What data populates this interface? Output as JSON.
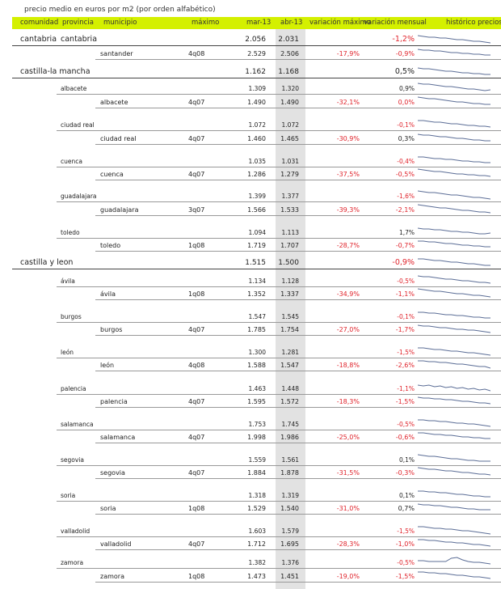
{
  "caption": "precio medio en euros por m2 (por orden alfabético)",
  "colors": {
    "header_bg": "#d4f000",
    "highlight_col": "#e2e2e2",
    "negative": "#e0232b",
    "sparkline": "#5b6d96"
  },
  "headers": {
    "comunidad": "comunidad",
    "provincia": "provincia",
    "municipio": "municipio",
    "maximo": "máximo",
    "mar13": "mar-13",
    "abr13": "abr-13",
    "var_max": "variación máximo",
    "var_mensual": "variación mensual",
    "historico": "histórico precios"
  },
  "rows": [
    {
      "level": "comunidad",
      "comunidad": "cantabria",
      "provincia": "cantabria",
      "maximo": "",
      "mar13": "2.056",
      "abr13": "2.031",
      "var_max": "",
      "var_mensual": "-1,2%",
      "neg": true,
      "trend": [
        10,
        9,
        8,
        8,
        7,
        7,
        6,
        5,
        5,
        4,
        3,
        3,
        2,
        1
      ]
    },
    {
      "level": "municipio",
      "municipio": "santander",
      "maximo": "4q08",
      "mar13": "2.529",
      "abr13": "2.506",
      "var_max": "-17,9%",
      "var_mensual": "-0,9%",
      "neg": true,
      "trend": [
        10,
        9,
        9,
        8,
        8,
        7,
        6,
        6,
        5,
        5,
        4,
        4,
        3,
        3
      ]
    },
    {
      "level": "comunidad",
      "comunidad": "castilla-la mancha",
      "provincia": "",
      "maximo": "",
      "mar13": "1.162",
      "abr13": "1.168",
      "var_max": "",
      "var_mensual": "0,5%",
      "neg": false,
      "trend": [
        10,
        9,
        9,
        8,
        7,
        6,
        6,
        5,
        4,
        4,
        3,
        3,
        2,
        2
      ]
    },
    {
      "level": "provincia",
      "provincia": "albacete",
      "maximo": "",
      "mar13": "1.309",
      "abr13": "1.320",
      "var_max": "",
      "var_mensual": "0,9%",
      "neg": false,
      "trend": [
        11,
        10,
        10,
        9,
        8,
        7,
        7,
        6,
        5,
        4,
        4,
        3,
        2,
        3
      ]
    },
    {
      "level": "municipio",
      "municipio": "albacete",
      "maximo": "4q07",
      "mar13": "1.490",
      "abr13": "1.490",
      "var_max": "-32,1%",
      "var_mensual": "0,0%",
      "neg": true,
      "trend": [
        11,
        10,
        9,
        9,
        8,
        7,
        6,
        5,
        5,
        4,
        3,
        3,
        2,
        2
      ]
    },
    {
      "level": "provincia",
      "provincia": "ciudad real",
      "maximo": "",
      "mar13": "1.072",
      "abr13": "1.072",
      "var_max": "",
      "var_mensual": "-0,1%",
      "neg": true,
      "trend": [
        10,
        10,
        9,
        8,
        8,
        7,
        6,
        6,
        5,
        4,
        4,
        3,
        3,
        2
      ]
    },
    {
      "level": "municipio",
      "municipio": "ciudad real",
      "maximo": "4q07",
      "mar13": "1.460",
      "abr13": "1.465",
      "var_max": "-30,9%",
      "var_mensual": "0,3%",
      "neg": false,
      "trend": [
        10,
        9,
        9,
        8,
        7,
        7,
        6,
        5,
        5,
        4,
        3,
        3,
        2,
        2
      ]
    },
    {
      "level": "provincia",
      "provincia": "cuenca",
      "maximo": "",
      "mar13": "1.035",
      "abr13": "1.031",
      "var_max": "",
      "var_mensual": "-0,4%",
      "neg": true,
      "trend": [
        10,
        10,
        9,
        8,
        8,
        7,
        7,
        6,
        5,
        5,
        4,
        4,
        3,
        3
      ]
    },
    {
      "level": "municipio",
      "municipio": "cuenca",
      "maximo": "4q07",
      "mar13": "1.286",
      "abr13": "1.279",
      "var_max": "-37,5%",
      "var_mensual": "-0,5%",
      "neg": true,
      "trend": [
        11,
        10,
        9,
        8,
        8,
        7,
        6,
        5,
        5,
        4,
        4,
        3,
        3,
        2
      ]
    },
    {
      "level": "provincia",
      "provincia": "guadalajara",
      "maximo": "",
      "mar13": "1.399",
      "abr13": "1.377",
      "var_max": "",
      "var_mensual": "-1,6%",
      "neg": true,
      "trend": [
        11,
        10,
        9,
        9,
        8,
        7,
        6,
        6,
        5,
        4,
        3,
        3,
        2,
        1
      ]
    },
    {
      "level": "municipio",
      "municipio": "guadalajara",
      "maximo": "3q07",
      "mar13": "1.566",
      "abr13": "1.533",
      "var_max": "-39,3%",
      "var_mensual": "-2,1%",
      "neg": true,
      "trend": [
        11,
        10,
        9,
        8,
        7,
        7,
        6,
        5,
        4,
        4,
        3,
        2,
        2,
        1
      ]
    },
    {
      "level": "provincia",
      "provincia": "toledo",
      "maximo": "",
      "mar13": "1.094",
      "abr13": "1.113",
      "var_max": "",
      "var_mensual": "1,7%",
      "neg": false,
      "trend": [
        10,
        9,
        9,
        8,
        8,
        7,
        6,
        6,
        5,
        5,
        4,
        3,
        3,
        4
      ]
    },
    {
      "level": "municipio",
      "municipio": "toledo",
      "maximo": "1q08",
      "mar13": "1.719",
      "abr13": "1.707",
      "var_max": "-28,7%",
      "var_mensual": "-0,7%",
      "neg": true,
      "trend": [
        10,
        10,
        9,
        9,
        8,
        7,
        7,
        6,
        5,
        5,
        4,
        4,
        3,
        3
      ]
    },
    {
      "level": "comunidad",
      "comunidad": "castilla y leon",
      "provincia": "",
      "maximo": "",
      "mar13": "1.515",
      "abr13": "1.500",
      "var_max": "",
      "var_mensual": "-0,9%",
      "neg": true,
      "trend": [
        10,
        10,
        9,
        8,
        8,
        7,
        6,
        6,
        5,
        4,
        4,
        3,
        2,
        2
      ]
    },
    {
      "level": "provincia",
      "provincia": "ávila",
      "maximo": "",
      "mar13": "1.134",
      "abr13": "1.128",
      "var_max": "",
      "var_mensual": "-0,5%",
      "neg": true,
      "trend": [
        11,
        10,
        10,
        9,
        8,
        7,
        7,
        6,
        5,
        5,
        4,
        3,
        3,
        2
      ]
    },
    {
      "level": "municipio",
      "municipio": "ávila",
      "maximo": "1q08",
      "mar13": "1.352",
      "abr13": "1.337",
      "var_max": "-34,9%",
      "var_mensual": "-1,1%",
      "neg": true,
      "trend": [
        11,
        10,
        9,
        8,
        8,
        7,
        6,
        5,
        5,
        4,
        3,
        3,
        2,
        1
      ]
    },
    {
      "level": "provincia",
      "provincia": "burgos",
      "maximo": "",
      "mar13": "1.547",
      "abr13": "1.545",
      "var_max": "",
      "var_mensual": "-0,1%",
      "neg": true,
      "trend": [
        10,
        10,
        9,
        9,
        8,
        7,
        7,
        6,
        6,
        5,
        4,
        4,
        3,
        3
      ]
    },
    {
      "level": "municipio",
      "municipio": "burgos",
      "maximo": "4q07",
      "mar13": "1.785",
      "abr13": "1.754",
      "var_max": "-27,0%",
      "var_mensual": "-1,7%",
      "neg": true,
      "trend": [
        10,
        9,
        9,
        8,
        7,
        7,
        6,
        5,
        5,
        4,
        4,
        3,
        2,
        1
      ]
    },
    {
      "level": "provincia",
      "provincia": "león",
      "maximo": "",
      "mar13": "1.300",
      "abr13": "1.281",
      "var_max": "",
      "var_mensual": "-1,5%",
      "neg": true,
      "trend": [
        10,
        10,
        9,
        8,
        8,
        7,
        6,
        6,
        5,
        4,
        4,
        3,
        2,
        1
      ]
    },
    {
      "level": "municipio",
      "municipio": "león",
      "maximo": "4q08",
      "mar13": "1.588",
      "abr13": "1.547",
      "var_max": "-18,8%",
      "var_mensual": "-2,6%",
      "neg": true,
      "trend": [
        10,
        10,
        9,
        9,
        8,
        8,
        7,
        6,
        6,
        5,
        4,
        3,
        3,
        1
      ]
    },
    {
      "level": "provincia",
      "provincia": "palencia",
      "maximo": "",
      "mar13": "1.463",
      "abr13": "1.448",
      "var_max": "",
      "var_mensual": "-1,1%",
      "neg": true,
      "trend": [
        9,
        8,
        9,
        7,
        8,
        6,
        7,
        5,
        6,
        4,
        5,
        3,
        4,
        2
      ]
    },
    {
      "level": "municipio",
      "municipio": "palencia",
      "maximo": "4q07",
      "mar13": "1.595",
      "abr13": "1.572",
      "var_max": "-18,3%",
      "var_mensual": "-1,5%",
      "neg": true,
      "trend": [
        10,
        9,
        9,
        8,
        8,
        7,
        7,
        6,
        5,
        5,
        4,
        3,
        3,
        2
      ]
    },
    {
      "level": "provincia",
      "provincia": "salamanca",
      "maximo": "",
      "mar13": "1.753",
      "abr13": "1.745",
      "var_max": "",
      "var_mensual": "-0,5%",
      "neg": true,
      "trend": [
        10,
        10,
        9,
        9,
        8,
        8,
        7,
        6,
        6,
        5,
        5,
        4,
        3,
        2
      ]
    },
    {
      "level": "municipio",
      "municipio": "salamanca",
      "maximo": "4q07",
      "mar13": "1.998",
      "abr13": "1.986",
      "var_max": "-25,0%",
      "var_mensual": "-0,6%",
      "neg": true,
      "trend": [
        10,
        10,
        9,
        8,
        8,
        7,
        7,
        6,
        5,
        5,
        4,
        4,
        3,
        3
      ]
    },
    {
      "level": "provincia",
      "provincia": "segovia",
      "maximo": "",
      "mar13": "1.559",
      "abr13": "1.561",
      "var_max": "",
      "var_mensual": "0,1%",
      "neg": false,
      "trend": [
        11,
        10,
        9,
        9,
        8,
        7,
        6,
        6,
        5,
        4,
        4,
        3,
        3,
        3
      ]
    },
    {
      "level": "municipio",
      "municipio": "segovia",
      "maximo": "4q07",
      "mar13": "1.884",
      "abr13": "1.878",
      "var_max": "-31,5%",
      "var_mensual": "-0,3%",
      "neg": true,
      "trend": [
        11,
        10,
        9,
        9,
        8,
        7,
        7,
        6,
        5,
        5,
        4,
        3,
        3,
        2
      ]
    },
    {
      "level": "provincia",
      "provincia": "soria",
      "maximo": "",
      "mar13": "1.318",
      "abr13": "1.319",
      "var_max": "",
      "var_mensual": "0,1%",
      "neg": false,
      "trend": [
        10,
        10,
        9,
        9,
        8,
        8,
        7,
        6,
        6,
        5,
        4,
        4,
        3,
        3
      ]
    },
    {
      "level": "municipio",
      "municipio": "soria",
      "maximo": "1q08",
      "mar13": "1.529",
      "abr13": "1.540",
      "var_max": "-31,0%",
      "var_mensual": "0,7%",
      "neg": false,
      "trend": [
        10,
        9,
        9,
        8,
        8,
        7,
        6,
        6,
        5,
        4,
        4,
        3,
        3,
        3
      ]
    },
    {
      "level": "provincia",
      "provincia": "valladolid",
      "maximo": "",
      "mar13": "1.603",
      "abr13": "1.579",
      "var_max": "",
      "var_mensual": "-1,5%",
      "neg": true,
      "trend": [
        10,
        10,
        9,
        8,
        8,
        7,
        7,
        6,
        5,
        5,
        4,
        3,
        2,
        1
      ]
    },
    {
      "level": "municipio",
      "municipio": "valladolid",
      "maximo": "4q07",
      "mar13": "1.712",
      "abr13": "1.695",
      "var_max": "-28,3%",
      "var_mensual": "-1,0%",
      "neg": true,
      "trend": [
        10,
        10,
        9,
        9,
        8,
        7,
        7,
        6,
        6,
        5,
        4,
        4,
        3,
        2
      ]
    },
    {
      "level": "provincia",
      "provincia": "zamora",
      "maximo": "",
      "mar13": "1.382",
      "abr13": "1.376",
      "var_max": "",
      "var_mensual": "-0,5%",
      "neg": true,
      "trend": [
        7,
        7,
        6,
        6,
        6,
        6,
        10,
        11,
        8,
        6,
        5,
        5,
        4,
        3
      ]
    },
    {
      "level": "municipio",
      "municipio": "zamora",
      "maximo": "1q08",
      "mar13": "1.473",
      "abr13": "1.451",
      "var_max": "-19,0%",
      "var_mensual": "-1,5%",
      "neg": true,
      "trend": [
        10,
        10,
        9,
        9,
        8,
        8,
        7,
        6,
        6,
        5,
        4,
        4,
        3,
        2
      ]
    }
  ]
}
